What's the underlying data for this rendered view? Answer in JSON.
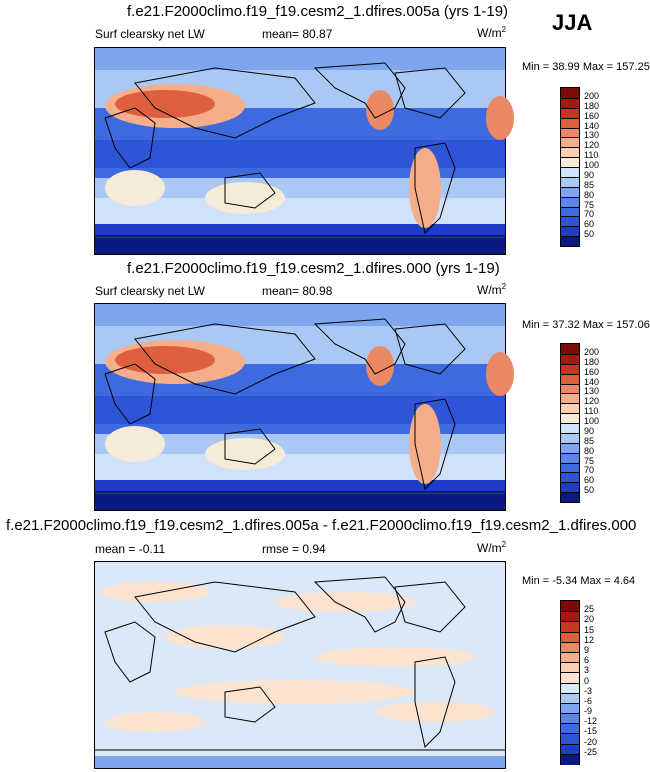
{
  "season": "JJA",
  "units_label": "W/m",
  "units_sup": "2",
  "panels": [
    {
      "title": "f.e21.F2000climo.f19_f19.cesm2_1.dfires.005a (yrs 1-19)",
      "field": "Surf clearsky net LW",
      "mean_label": "mean=",
      "mean_value": "80.87",
      "minmax": "Min = 38.99 Max = 157.25"
    },
    {
      "title": "f.e21.F2000climo.f19_f19.cesm2_1.dfires.000 (yrs 1-19)",
      "field": "Surf clearsky net LW",
      "mean_label": "mean=",
      "mean_value": "80.98",
      "minmax": "Min = 37.32 Max = 157.06"
    },
    {
      "title": "f.e21.F2000climo.f19_f19.cesm2_1.dfires.005a - f.e21.F2000climo.f19_f19.cesm2_1.dfires.000",
      "mean_label": "mean =",
      "mean_value": "-0.11",
      "rmse_label": "rmse =",
      "rmse_value": "0.94",
      "minmax": "Min = -5.34 Max =  4.64"
    }
  ],
  "chart_data": [
    {
      "type": "heatmap",
      "title": "f.e21.F2000climo.f19_f19.cesm2_1.dfires.005a (yrs 1-19)",
      "subtitle": "Surf clearsky net LW",
      "units": "W/m2",
      "mean": 80.87,
      "min": 38.99,
      "max": 157.25,
      "colorbar_levels": [
        50,
        60,
        70,
        75,
        80,
        85,
        90,
        100,
        110,
        120,
        130,
        140,
        160,
        180,
        200
      ],
      "colorbar_colors": [
        "#0a1a82",
        "#1f3cc8",
        "#2e55d8",
        "#3e6ae0",
        "#5a86e6",
        "#7ea6ee",
        "#a9c8f4",
        "#cfe2fa",
        "#f6ead8",
        "#fbcfb2",
        "#f6ae8a",
        "#ec8863",
        "#de5f3e",
        "#c7371f",
        "#a51a10",
        "#7c0b07"
      ]
    },
    {
      "type": "heatmap",
      "title": "f.e21.F2000climo.f19_f19.cesm2_1.dfires.000 (yrs 1-19)",
      "subtitle": "Surf clearsky net LW",
      "units": "W/m2",
      "mean": 80.98,
      "min": 37.32,
      "max": 157.06,
      "colorbar_levels": [
        50,
        60,
        70,
        75,
        80,
        85,
        90,
        100,
        110,
        120,
        130,
        140,
        160,
        180,
        200
      ],
      "colorbar_colors": [
        "#0a1a82",
        "#1f3cc8",
        "#2e55d8",
        "#3e6ae0",
        "#5a86e6",
        "#7ea6ee",
        "#a9c8f4",
        "#cfe2fa",
        "#f6ead8",
        "#fbcfb2",
        "#f6ae8a",
        "#ec8863",
        "#de5f3e",
        "#c7371f",
        "#a51a10",
        "#7c0b07"
      ]
    },
    {
      "type": "heatmap",
      "title": "f.e21.F2000climo.f19_f19.cesm2_1.dfires.005a - f.e21.F2000climo.f19_f19.cesm2_1.dfires.000",
      "units": "W/m2",
      "mean": -0.11,
      "rmse": 0.94,
      "min": -5.34,
      "max": 4.64,
      "colorbar_levels": [
        -25,
        -20,
        -15,
        -12,
        -9,
        -6,
        -3,
        0,
        3,
        6,
        9,
        12,
        15,
        20,
        25
      ],
      "colorbar_colors": [
        "#0a1a82",
        "#1f3cc8",
        "#2e55d8",
        "#3e6ae0",
        "#5a86e6",
        "#7ea6ee",
        "#a9c8f4",
        "#dbe8f8",
        "#fbe3d0",
        "#fbcfb2",
        "#f6ae8a",
        "#ec8863",
        "#de5f3e",
        "#c7371f",
        "#a51a10",
        "#7c0b07"
      ]
    }
  ]
}
